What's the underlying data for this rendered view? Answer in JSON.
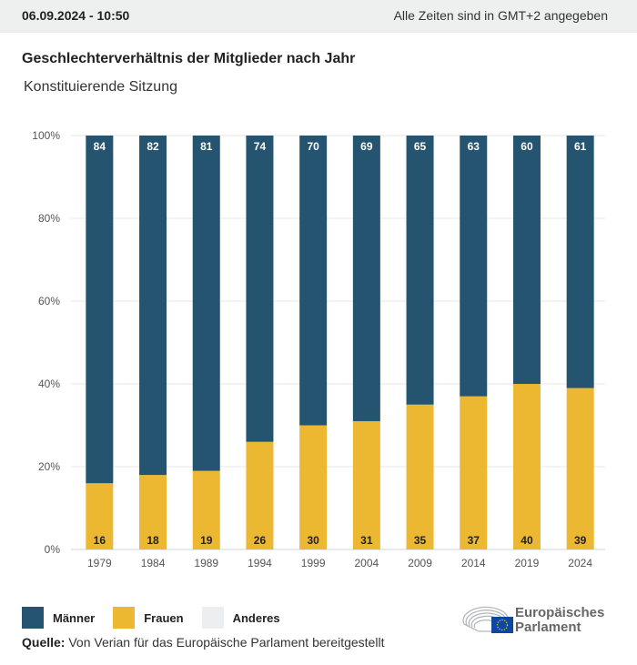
{
  "header": {
    "datetime": "06.09.2024 - 10:50",
    "timezone_note": "Alle Zeiten sind in GMT+2 angegeben"
  },
  "chart_data": {
    "type": "bar",
    "stacked": true,
    "title": "Geschlechterverhältnis der Mitglieder nach Jahr",
    "subtitle": "Konstituierende Sitzung",
    "categories": [
      "1979",
      "1984",
      "1989",
      "1994",
      "1999",
      "2004",
      "2009",
      "2014",
      "2019",
      "2024"
    ],
    "series": [
      {
        "name": "Frauen",
        "color": "#ecb731",
        "values": [
          16,
          18,
          19,
          26,
          30,
          31,
          35,
          37,
          40,
          39
        ]
      },
      {
        "name": "Männer",
        "color": "#245470",
        "values": [
          84,
          82,
          81,
          74,
          70,
          69,
          65,
          63,
          60,
          61
        ]
      },
      {
        "name": "Anderes",
        "color": "#eceeef",
        "values": [
          0,
          0,
          0,
          0,
          0,
          0,
          0,
          0,
          0,
          0
        ]
      }
    ],
    "yticks": [
      "0%",
      "20%",
      "40%",
      "60%",
      "80%",
      "100%"
    ],
    "ylim": [
      0,
      100
    ],
    "xlabel": "",
    "ylabel": "",
    "grid": true,
    "legend_position": "bottom-left"
  },
  "legend": [
    {
      "label": "Männer",
      "color": "#245470"
    },
    {
      "label": "Frauen",
      "color": "#ecb731"
    },
    {
      "label": "Anderes",
      "color": "#eceeef"
    }
  ],
  "source": {
    "label": "Quelle:",
    "text": " Von Verian für das Europäische Parlament bereitgestellt"
  },
  "logo": {
    "line1": "Europäisches",
    "line2": "Parlament"
  }
}
